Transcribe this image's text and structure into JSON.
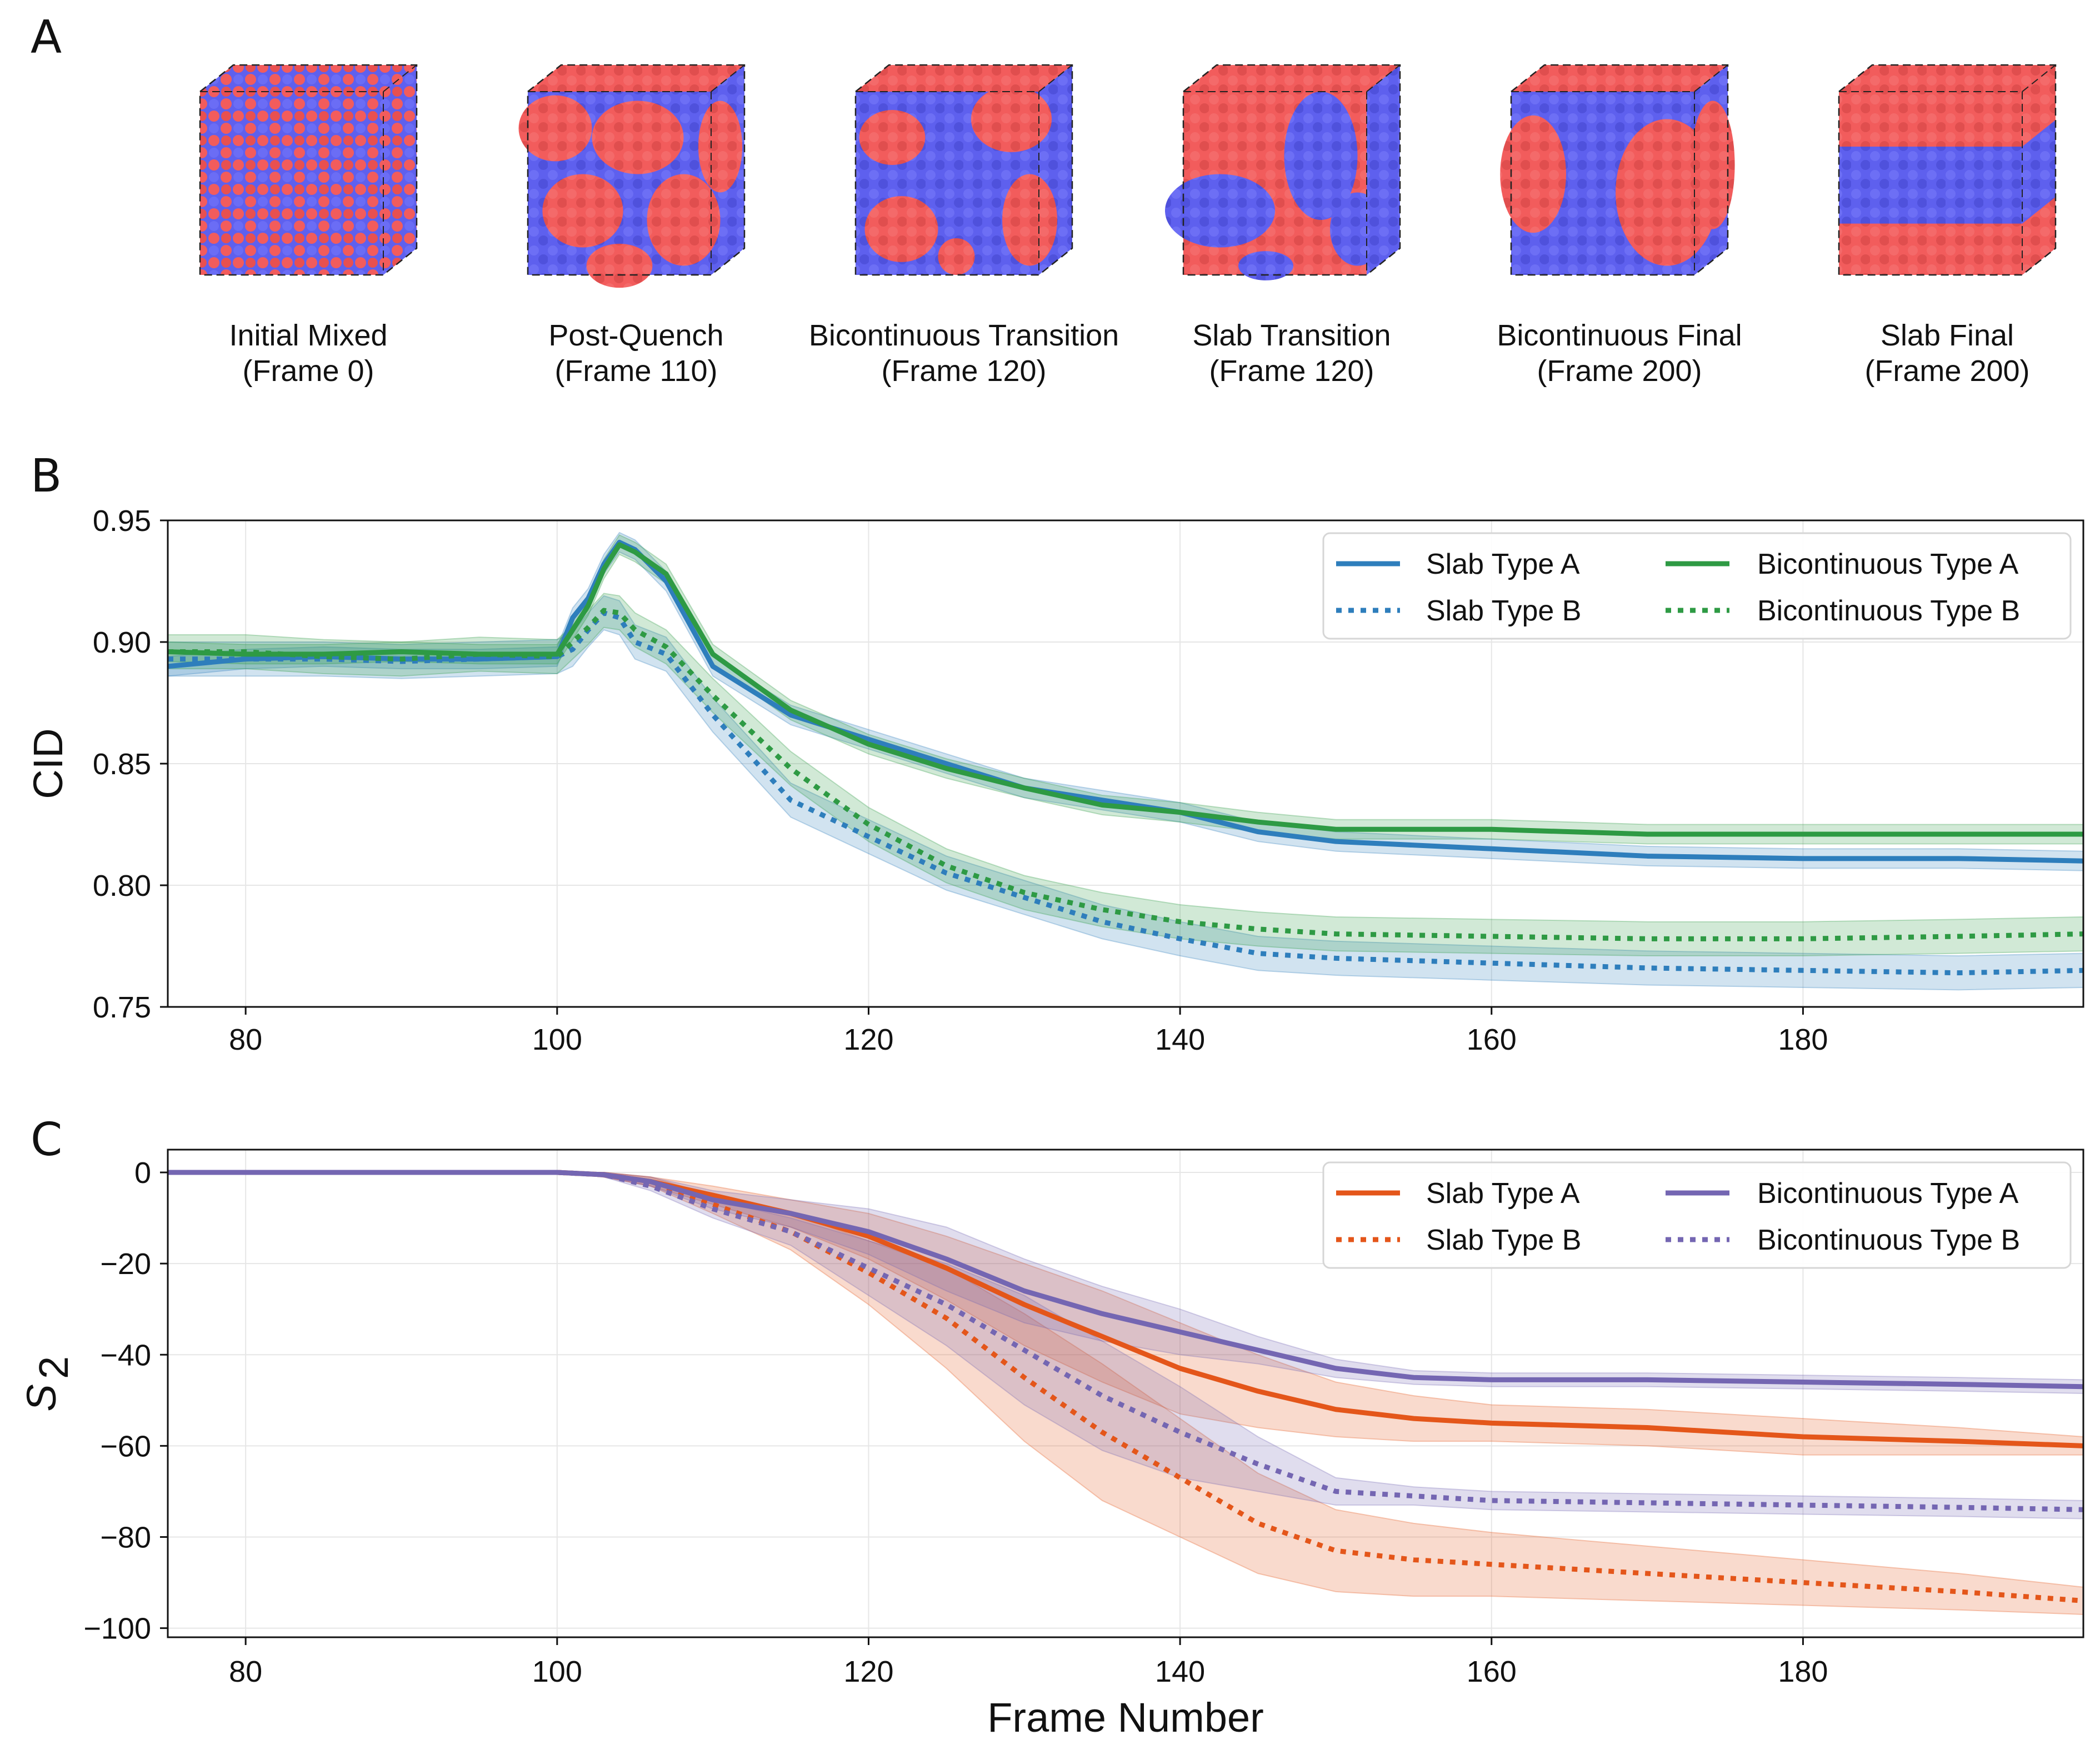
{
  "panels": {
    "a": "A",
    "b": "B",
    "c": "C"
  },
  "snapshots": [
    {
      "title": "Initial Mixed",
      "frame": "(Frame 0)",
      "style": "mixed"
    },
    {
      "title": "Post-Quench",
      "frame": "(Frame 110)",
      "style": "post"
    },
    {
      "title": "Bicontinuous Transition",
      "frame": "(Frame 120)",
      "style": "bitrans"
    },
    {
      "title": "Slab Transition",
      "frame": "(Frame 120)",
      "style": "slabtrans"
    },
    {
      "title": "Bicontinuous Final",
      "frame": "(Frame 200)",
      "style": "bifinal"
    },
    {
      "title": "Slab Final",
      "frame": "(Frame 200)",
      "style": "slabfinal"
    }
  ],
  "colors": {
    "particle_red": "#f25c5c",
    "particle_blue": "#5e60ee",
    "slab_cid": "#2e7ebc",
    "bi_cid": "#2e9a44",
    "slab_s2": "#e4561a",
    "bi_s2": "#7466b2"
  },
  "chart_data": [
    {
      "type": "line",
      "panel": "B",
      "title": "",
      "xlabel": "",
      "ylabel": "CID",
      "xlim": [
        75,
        198
      ],
      "ylim": [
        0.75,
        0.95
      ],
      "xticks": [
        80,
        100,
        120,
        140,
        160,
        180
      ],
      "xtick_labels": [
        "80",
        "100",
        "120",
        "140",
        "160",
        "180"
      ],
      "yticks": [
        0.75,
        0.8,
        0.85,
        0.9,
        0.95
      ],
      "ytick_labels": [
        "0.75",
        "0.80",
        "0.85",
        "0.90",
        "0.95"
      ],
      "grid": true,
      "legend": "top-right",
      "series": [
        {
          "name": "Slab Type A",
          "color": "#2e7ebc",
          "dash": "solid",
          "band": 0.004,
          "x": [
            75,
            80,
            85,
            90,
            95,
            100,
            101,
            102,
            103,
            104,
            105,
            107,
            110,
            115,
            120,
            125,
            130,
            135,
            140,
            145,
            150,
            160,
            170,
            180,
            190,
            198
          ],
          "y": [
            0.89,
            0.893,
            0.894,
            0.893,
            0.893,
            0.894,
            0.91,
            0.918,
            0.932,
            0.941,
            0.938,
            0.925,
            0.89,
            0.87,
            0.86,
            0.85,
            0.84,
            0.835,
            0.83,
            0.822,
            0.818,
            0.815,
            0.812,
            0.811,
            0.811,
            0.81
          ]
        },
        {
          "name": "Slab Type B",
          "color": "#2e7ebc",
          "dash": "dotted",
          "band": 0.007,
          "x": [
            75,
            80,
            85,
            90,
            95,
            100,
            101,
            102,
            103,
            104,
            105,
            107,
            110,
            115,
            120,
            125,
            130,
            135,
            140,
            145,
            150,
            160,
            170,
            180,
            190,
            198
          ],
          "y": [
            0.893,
            0.893,
            0.893,
            0.892,
            0.893,
            0.894,
            0.897,
            0.905,
            0.912,
            0.91,
            0.9,
            0.895,
            0.87,
            0.835,
            0.82,
            0.805,
            0.795,
            0.785,
            0.778,
            0.772,
            0.77,
            0.768,
            0.766,
            0.765,
            0.764,
            0.765
          ]
        },
        {
          "name": "Bicontinuous Type A",
          "color": "#2e9a44",
          "dash": "solid",
          "band": 0.004,
          "x": [
            75,
            80,
            85,
            90,
            95,
            100,
            101,
            102,
            103,
            104,
            105,
            107,
            110,
            115,
            120,
            125,
            130,
            135,
            140,
            145,
            150,
            160,
            170,
            180,
            190,
            198
          ],
          "y": [
            0.896,
            0.895,
            0.895,
            0.896,
            0.895,
            0.895,
            0.905,
            0.915,
            0.93,
            0.94,
            0.937,
            0.928,
            0.895,
            0.872,
            0.858,
            0.848,
            0.84,
            0.833,
            0.83,
            0.826,
            0.823,
            0.823,
            0.821,
            0.821,
            0.821,
            0.821
          ]
        },
        {
          "name": "Bicontinuous Type B",
          "color": "#2e9a44",
          "dash": "dotted",
          "band": 0.007,
          "x": [
            75,
            80,
            85,
            90,
            95,
            100,
            101,
            102,
            103,
            104,
            105,
            107,
            110,
            115,
            120,
            125,
            130,
            135,
            140,
            145,
            150,
            160,
            170,
            180,
            190,
            198
          ],
          "y": [
            0.896,
            0.896,
            0.894,
            0.893,
            0.895,
            0.894,
            0.9,
            0.906,
            0.913,
            0.912,
            0.905,
            0.898,
            0.878,
            0.848,
            0.825,
            0.808,
            0.797,
            0.79,
            0.785,
            0.782,
            0.78,
            0.779,
            0.778,
            0.778,
            0.779,
            0.78
          ]
        }
      ]
    },
    {
      "type": "line",
      "panel": "C",
      "title": "",
      "xlabel": "Frame Number",
      "ylabel": "S",
      "ylabel_sub": "2",
      "xlim": [
        75,
        198
      ],
      "ylim": [
        -102,
        5
      ],
      "xticks": [
        80,
        100,
        120,
        140,
        160,
        180
      ],
      "xtick_labels": [
        "80",
        "100",
        "120",
        "140",
        "160",
        "180"
      ],
      "yticks": [
        0,
        -20,
        -40,
        -60,
        -80,
        -100
      ],
      "ytick_labels": [
        "0",
        "−20",
        "−40",
        "−60",
        "−80",
        "−100"
      ],
      "grid": true,
      "legend": "top-right",
      "series": [
        {
          "name": "Slab Type A",
          "color": "#e4561a",
          "dash": "solid",
          "x": [
            75,
            100,
            103,
            106,
            110,
            115,
            120,
            125,
            130,
            135,
            140,
            145,
            150,
            155,
            160,
            170,
            180,
            190,
            198
          ],
          "y": [
            0,
            0,
            -0.5,
            -2,
            -5,
            -9,
            -14,
            -21,
            -29,
            -36,
            -43,
            -48,
            -52,
            -54,
            -55,
            -56,
            -58,
            -59,
            -60
          ],
          "band": [
            0,
            0,
            0.5,
            1,
            2,
            3,
            5,
            7,
            9,
            10,
            10,
            8,
            6,
            5,
            4,
            4,
            4,
            3,
            2
          ]
        },
        {
          "name": "Slab Type B",
          "color": "#e4561a",
          "dash": "dotted",
          "x": [
            75,
            100,
            103,
            106,
            110,
            115,
            120,
            125,
            130,
            135,
            140,
            145,
            150,
            155,
            160,
            170,
            180,
            190,
            198
          ],
          "y": [
            0,
            0,
            -0.5,
            -2,
            -7,
            -13,
            -22,
            -32,
            -45,
            -57,
            -67,
            -77,
            -83,
            -85,
            -86,
            -88,
            -90,
            -92,
            -94
          ],
          "band": [
            0,
            0,
            0.5,
            1,
            2,
            4,
            7,
            11,
            14,
            15,
            13,
            11,
            9,
            8,
            7,
            6,
            5,
            4,
            3
          ]
        },
        {
          "name": "Bicontinuous Type A",
          "color": "#7466b2",
          "dash": "solid",
          "x": [
            75,
            100,
            103,
            106,
            110,
            115,
            120,
            125,
            130,
            135,
            140,
            145,
            150,
            155,
            160,
            170,
            180,
            190,
            198
          ],
          "y": [
            0,
            0,
            -0.5,
            -2,
            -6,
            -9,
            -13,
            -19,
            -26,
            -31,
            -35,
            -39,
            -43,
            -45,
            -45.5,
            -45.5,
            -46,
            -46.5,
            -47
          ],
          "band": [
            0,
            0,
            0.5,
            1,
            2,
            3,
            5,
            7,
            7,
            6,
            5,
            3,
            2,
            1.5,
            1.5,
            1.5,
            1.5,
            1.5,
            1.5
          ]
        },
        {
          "name": "Bicontinuous Type B",
          "color": "#7466b2",
          "dash": "dotted",
          "x": [
            75,
            100,
            103,
            106,
            110,
            115,
            120,
            125,
            130,
            135,
            140,
            145,
            150,
            155,
            160,
            170,
            180,
            190,
            198
          ],
          "y": [
            0,
            0,
            -0.5,
            -3,
            -8,
            -13,
            -21,
            -29,
            -39,
            -49,
            -57,
            -64,
            -70,
            -71,
            -72,
            -72.5,
            -73,
            -73.5,
            -74
          ],
          "band": [
            0,
            0,
            0.5,
            1,
            2,
            3,
            6,
            9,
            12,
            12,
            10,
            6,
            3,
            2,
            2,
            2,
            2,
            2,
            2
          ]
        }
      ]
    }
  ]
}
